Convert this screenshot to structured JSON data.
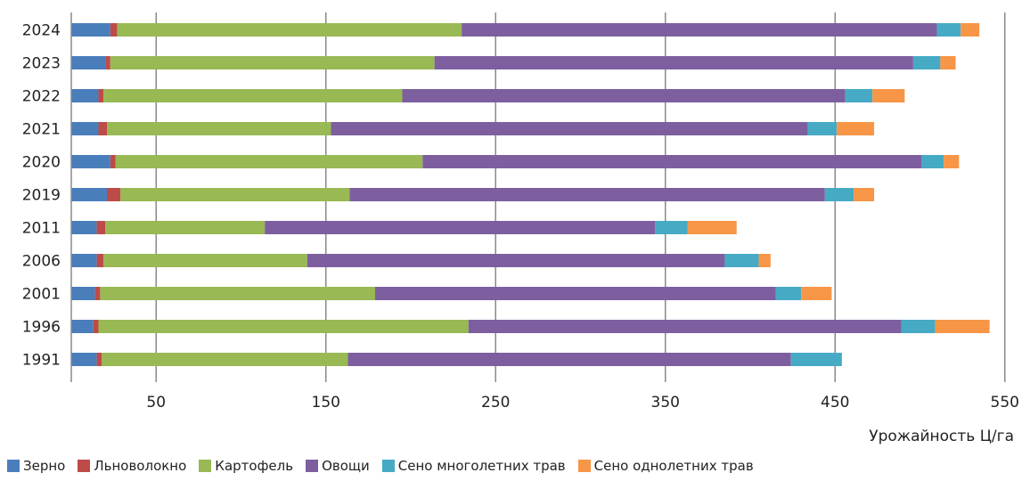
{
  "chart_data": {
    "type": "bar",
    "orientation": "horizontal",
    "stacked": true,
    "xlabel": "Урожайность Ц/га",
    "xticks": [
      50,
      150,
      250,
      350,
      450,
      550
    ],
    "xlim": [
      0,
      550
    ],
    "grid": true,
    "legend_position": "bottom",
    "categories": [
      "2024",
      "2023",
      "2022",
      "2021",
      "2020",
      "2019",
      "2011",
      "2006",
      "2001",
      "1996",
      "1991"
    ],
    "series": [
      {
        "name": "Зерно",
        "color": "#4a7ebb",
        "values": [
          23,
          20,
          16,
          16,
          23,
          21,
          15,
          15,
          14,
          13,
          15
        ]
      },
      {
        "name": "Льноволокно",
        "color": "#be4b48",
        "values": [
          4,
          3,
          3,
          5,
          3,
          8,
          5,
          4,
          3,
          3,
          3
        ]
      },
      {
        "name": "Картофель",
        "color": "#98b954",
        "values": [
          203,
          191,
          176,
          132,
          181,
          135,
          94,
          120,
          162,
          218,
          145
        ]
      },
      {
        "name": "Овощи",
        "color": "#7d5fa0",
        "values": [
          280,
          282,
          261,
          281,
          294,
          280,
          230,
          246,
          236,
          255,
          261
        ]
      },
      {
        "name": "Сено многолетних трав",
        "color": "#46aac5",
        "values": [
          14,
          16,
          16,
          17,
          13,
          17,
          19,
          20,
          15,
          20,
          30
        ]
      },
      {
        "name": "Сено однолетних трав",
        "color": "#f79646",
        "values": [
          11,
          9,
          19,
          22,
          9,
          12,
          29,
          7,
          18,
          32,
          0
        ]
      }
    ]
  }
}
